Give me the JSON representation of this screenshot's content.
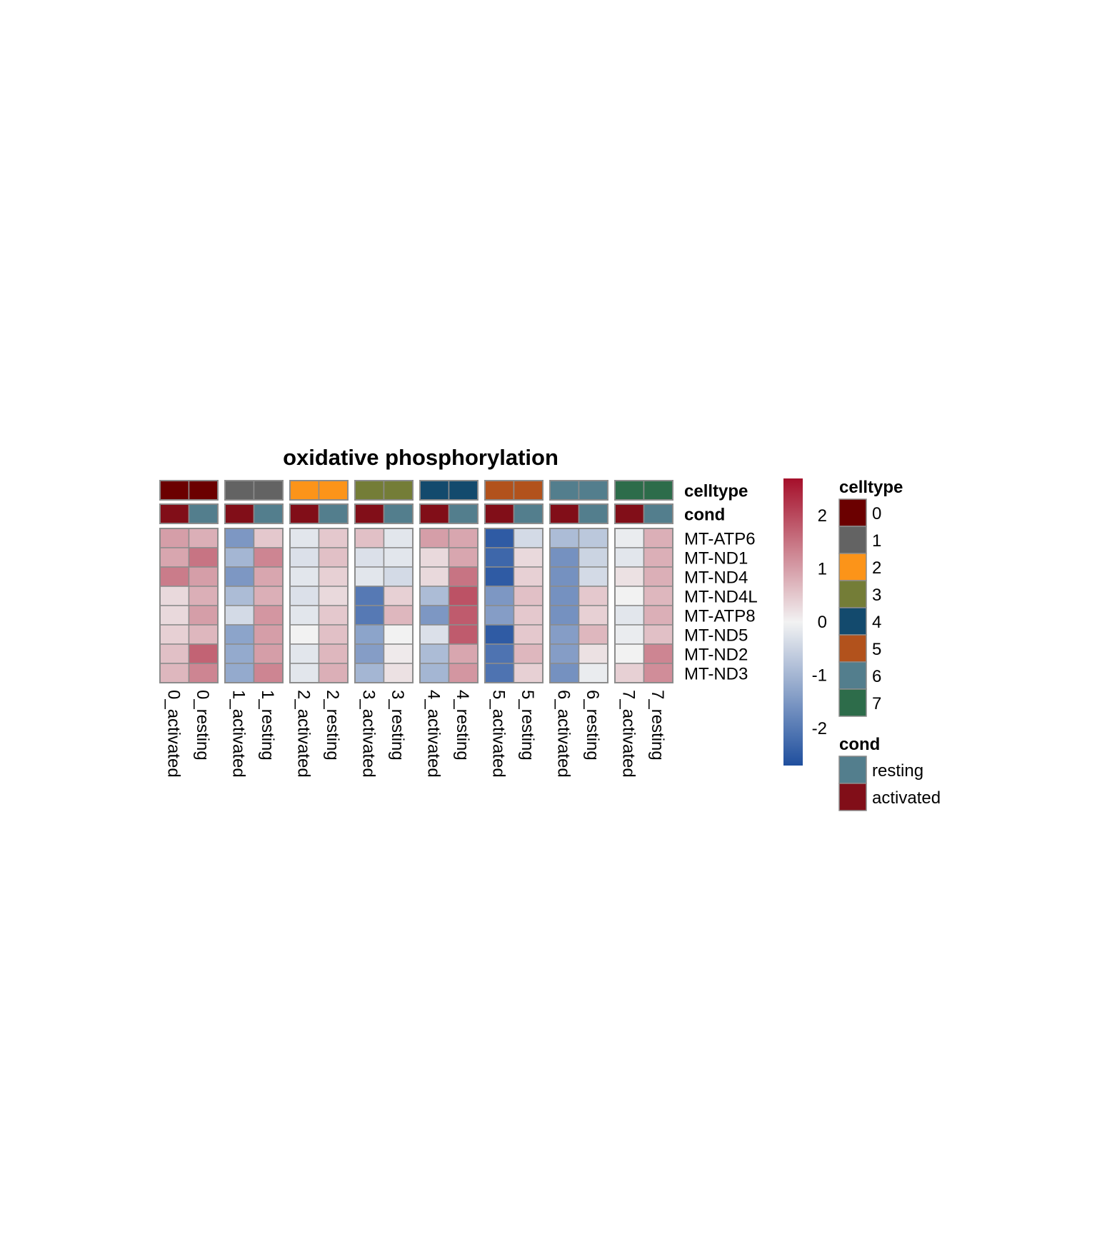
{
  "chart_data": {
    "type": "heatmap",
    "title": "oxidative phosphorylation",
    "columns": [
      "0_activated",
      "0_resting",
      "1_activated",
      "1_resting",
      "2_activated",
      "2_resting",
      "3_activated",
      "3_resting",
      "4_activated",
      "4_resting",
      "5_activated",
      "5_resting",
      "6_activated",
      "6_resting",
      "7_activated",
      "7_resting"
    ],
    "rows": [
      "MT-ATP6",
      "MT-ND1",
      "MT-ND4",
      "MT-ND4L",
      "MT-ATP8",
      "MT-ND5",
      "MT-ND2",
      "MT-ND3"
    ],
    "values": [
      [
        1.0,
        0.8,
        -1.5,
        0.5,
        -0.2,
        0.5,
        0.6,
        -0.2,
        1.0,
        0.9,
        -2.5,
        -0.4,
        -0.9,
        -0.7,
        -0.1,
        0.8
      ],
      [
        0.9,
        1.5,
        -1.0,
        1.3,
        -0.3,
        0.6,
        -0.3,
        -0.2,
        0.3,
        0.9,
        -2.3,
        0.3,
        -1.6,
        -0.5,
        -0.2,
        0.8
      ],
      [
        1.4,
        1.0,
        -1.5,
        0.9,
        -0.2,
        0.4,
        -0.2,
        -0.4,
        0.3,
        1.5,
        -2.5,
        0.4,
        -1.6,
        -0.4,
        0.2,
        0.8
      ],
      [
        0.3,
        0.8,
        -0.9,
        0.8,
        -0.3,
        0.3,
        -2.0,
        0.4,
        -0.9,
        1.9,
        -1.5,
        0.6,
        -1.6,
        0.5,
        0.0,
        0.7
      ],
      [
        0.3,
        1.0,
        -0.4,
        1.1,
        -0.2,
        0.5,
        -2.0,
        0.7,
        -1.5,
        1.8,
        -1.4,
        0.5,
        -1.6,
        0.4,
        -0.2,
        0.8
      ],
      [
        0.4,
        0.7,
        -1.3,
        1.0,
        0.0,
        0.6,
        -1.3,
        0.0,
        -0.3,
        1.8,
        -2.5,
        0.5,
        -1.4,
        0.7,
        -0.1,
        0.6
      ],
      [
        0.6,
        1.7,
        -1.2,
        1.0,
        -0.2,
        0.7,
        -1.4,
        0.1,
        -0.9,
        0.9,
        -2.1,
        0.7,
        -1.4,
        0.2,
        0.0,
        1.3
      ],
      [
        0.7,
        1.3,
        -1.2,
        1.3,
        -0.2,
        0.8,
        -1.0,
        0.2,
        -1.0,
        1.1,
        -2.1,
        0.4,
        -1.6,
        -0.1,
        0.4,
        1.2
      ]
    ],
    "gap_groups": [
      "0",
      "1",
      "2",
      "3",
      "4",
      "5",
      "6",
      "7"
    ],
    "column_annotations": [
      {
        "name": "celltype",
        "values": [
          "0",
          "0",
          "1",
          "1",
          "2",
          "2",
          "3",
          "3",
          "4",
          "4",
          "5",
          "5",
          "6",
          "6",
          "7",
          "7"
        ]
      },
      {
        "name": "cond",
        "values": [
          "activated",
          "resting",
          "activated",
          "resting",
          "activated",
          "resting",
          "activated",
          "resting",
          "activated",
          "resting",
          "activated",
          "resting",
          "activated",
          "resting",
          "activated",
          "resting"
        ]
      }
    ],
    "color_scale": {
      "min": -2.7,
      "max": 2.7,
      "low_color": "#1f4f9e",
      "mid_color": "#f2f2f2",
      "high_color": "#a50f2a",
      "ticks": [
        "2",
        "1",
        "0",
        "-1",
        "-2"
      ],
      "tick_values": [
        2,
        1,
        0,
        -1,
        -2
      ]
    },
    "legend": {
      "celltype": {
        "title": "celltype",
        "entries": [
          {
            "label": "0",
            "color": "#6b0000"
          },
          {
            "label": "1",
            "color": "#636363"
          },
          {
            "label": "2",
            "color": "#fc9419"
          },
          {
            "label": "3",
            "color": "#747d37"
          },
          {
            "label": "4",
            "color": "#134a6d"
          },
          {
            "label": "5",
            "color": "#b2521c"
          },
          {
            "label": "6",
            "color": "#537e8d"
          },
          {
            "label": "7",
            "color": "#2d6c4a"
          }
        ]
      },
      "cond": {
        "title": "cond",
        "entries": [
          {
            "label": "resting",
            "color": "#537e8d"
          },
          {
            "label": "activated",
            "color": "#810e18"
          }
        ]
      }
    },
    "grid_color": "#8c8c8c"
  }
}
